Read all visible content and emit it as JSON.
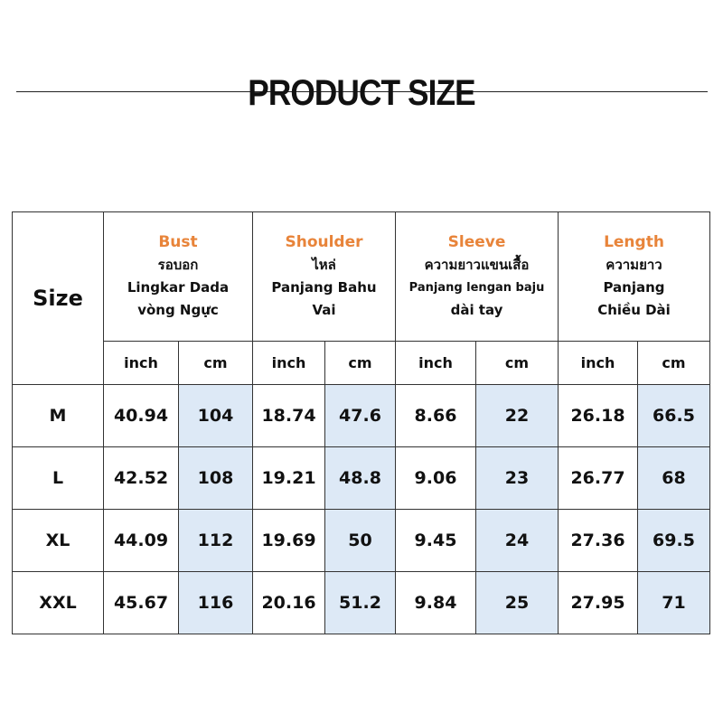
{
  "title": "PRODUCT SIZE",
  "table": {
    "size_header": "Size",
    "groups": [
      {
        "name": "Bust",
        "lines": [
          "รอบอก",
          "Lingkar Dada",
          "vòng Ngực"
        ],
        "units": [
          "inch",
          "cm"
        ]
      },
      {
        "name": "Shoulder",
        "lines": [
          "ไหล่",
          "Panjang Bahu",
          "Vai"
        ],
        "units": [
          "inch",
          "cm"
        ]
      },
      {
        "name": "Sleeve",
        "lines": [
          "ความยาวแขนเสื้อ",
          "Panjang lengan baju",
          "dài tay"
        ],
        "units": [
          "inch",
          "cm"
        ]
      },
      {
        "name": "Length",
        "lines": [
          "ความยาว",
          "Panjang",
          "Chiều Dài"
        ],
        "units": [
          "inch",
          "cm"
        ]
      }
    ],
    "rows": [
      {
        "size": "M",
        "cells": [
          "40.94",
          "104",
          "18.74",
          "47.6",
          "8.66",
          "22",
          "26.18",
          "66.5"
        ]
      },
      {
        "size": "L",
        "cells": [
          "42.52",
          "108",
          "19.21",
          "48.8",
          "9.06",
          "23",
          "26.77",
          "68"
        ]
      },
      {
        "size": "XL",
        "cells": [
          "44.09",
          "112",
          "19.69",
          "50",
          "9.45",
          "24",
          "27.36",
          "69.5"
        ]
      },
      {
        "size": "XXL",
        "cells": [
          "45.67",
          "116",
          "20.16",
          "51.2",
          "9.84",
          "25",
          "27.95",
          "71"
        ]
      }
    ]
  }
}
